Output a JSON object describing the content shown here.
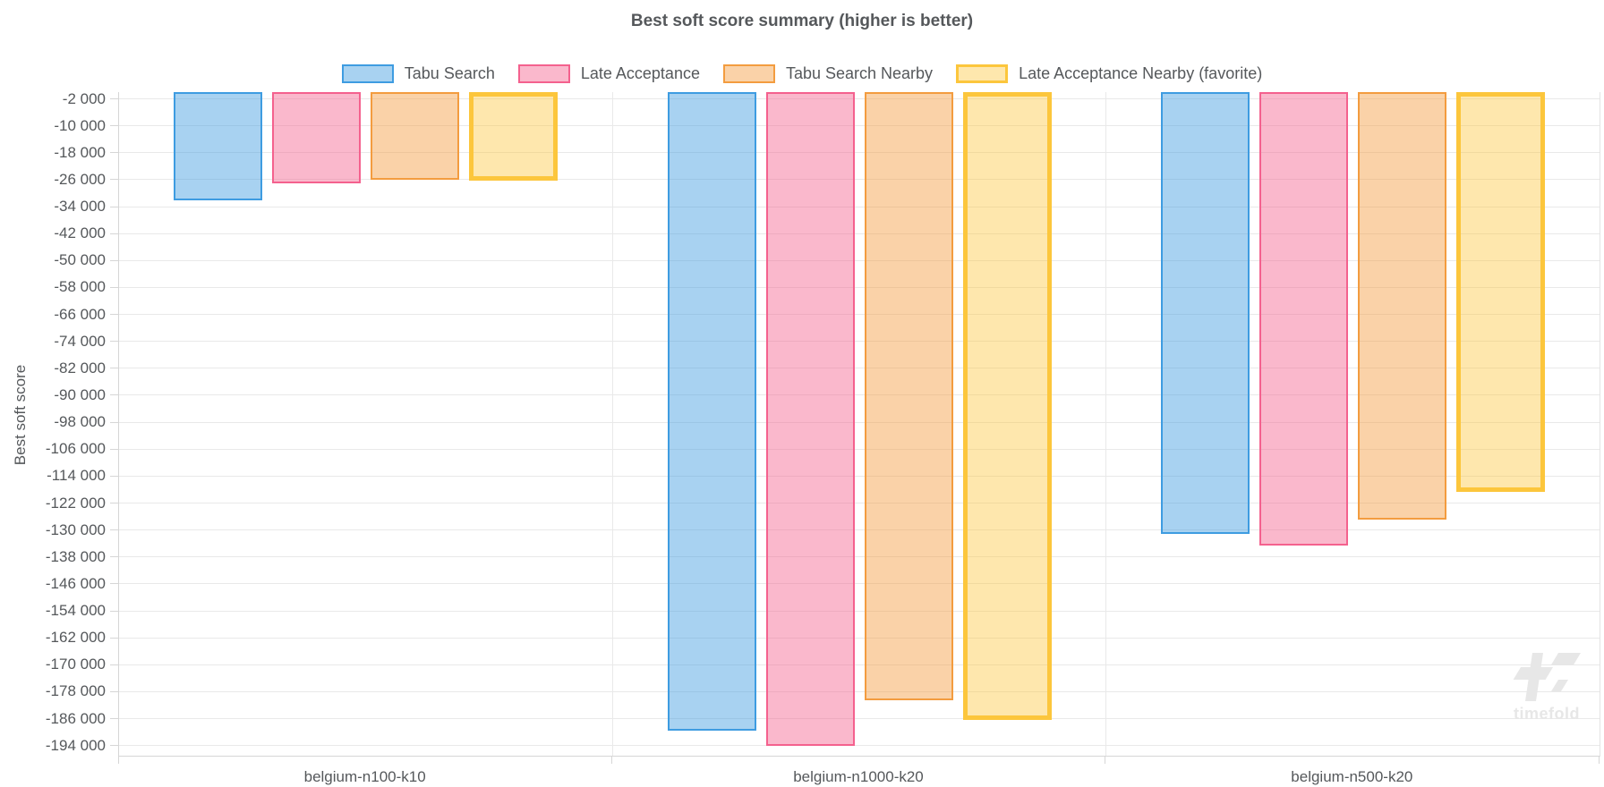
{
  "title": "Best soft score summary (higher is better)",
  "watermark": {
    "text": "timefold"
  },
  "chart_data": {
    "type": "bar",
    "title": "Best soft score summary (higher is better)",
    "xlabel": "",
    "ylabel": "Best soft score",
    "legend_position": "top",
    "grid": true,
    "categories": [
      "belgium-n100-k10",
      "belgium-n1000-k20",
      "belgium-n500-k20"
    ],
    "series": [
      {
        "name": "Tabu Search",
        "border_color": "#3e9ce1",
        "fill_color": "rgba(62,156,225,0.45)",
        "border_width": 2,
        "values": [
          -32100,
          -189600,
          -131200
        ]
      },
      {
        "name": "Late Acceptance",
        "border_color": "#f4618e",
        "fill_color": "rgba(244,97,142,0.45)",
        "border_width": 2,
        "values": [
          -27100,
          -194200,
          -134600
        ]
      },
      {
        "name": "Tabu Search Nearby",
        "border_color": "#f39c3f",
        "fill_color": "rgba(243,156,63,0.45)",
        "border_width": 2,
        "values": [
          -26000,
          -180600,
          -126800
        ]
      },
      {
        "name": "Late Acceptance Nearby (favorite)",
        "border_color": "#fcc63c",
        "fill_color": "rgba(252,198,60,0.42)",
        "border_width": 5,
        "values": [
          -26200,
          -186300,
          -118800
        ]
      }
    ],
    "y_axis": {
      "max": 0,
      "min": -197000,
      "tick_start": -2000,
      "tick_step": -8000,
      "tick_labels": [
        "-2 000",
        "-10 000",
        "-18 000",
        "-26 000",
        "-34 000",
        "-42 000",
        "-50 000",
        "-58 000",
        "-66 000",
        "-74 000",
        "-82 000",
        "-90 000",
        "-98 000",
        "-106 000",
        "-114 000",
        "-122 000",
        "-130 000",
        "-138 000",
        "-146 000",
        "-154 000",
        "-162 000",
        "-170 000",
        "-178 000",
        "-186 000",
        "-194 000"
      ]
    },
    "colors": {
      "grid": "#e9e9e9",
      "axis": "#d6d6d6",
      "text": "#55585b",
      "watermark": "#e7e7e7"
    }
  }
}
